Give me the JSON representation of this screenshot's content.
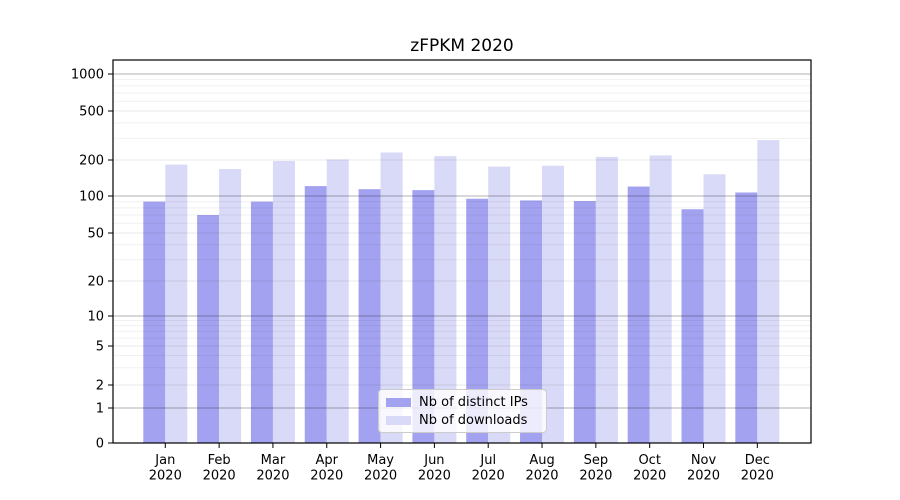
{
  "title": "zFPKM 2020",
  "chart_data": {
    "type": "bar",
    "title": "zFPKM 2020",
    "scale": "symlog",
    "grid": "on",
    "legend_position": "lower center",
    "categories": [
      "Jan 2020",
      "Feb 2020",
      "Mar 2020",
      "Apr 2020",
      "May 2020",
      "Jun 2020",
      "Jul 2020",
      "Aug 2020",
      "Sep 2020",
      "Oct 2020",
      "Nov 2020",
      "Dec 2020"
    ],
    "series": [
      {
        "name": "Nb of distinct IPs",
        "color": "#a2a2f0",
        "values": [
          90,
          70,
          90,
          121,
          114,
          112,
          95,
          92,
          91,
          120,
          78,
          107
        ]
      },
      {
        "name": "Nb of downloads",
        "color": "#d9d9f8",
        "values": [
          183,
          168,
          196,
          202,
          230,
          215,
          176,
          179,
          212,
          218,
          152,
          290
        ]
      }
    ],
    "yticks": [
      0,
      1,
      2,
      5,
      10,
      20,
      50,
      100,
      200,
      500,
      1000
    ],
    "ylim": [
      0,
      1200
    ],
    "xlabel": "",
    "ylabel": ""
  },
  "colors": {
    "background": "#ffffff",
    "ips_bar": "#a2a2f0",
    "downloads_bar": "#d9d9f8",
    "grid_major": "#b5b5b5",
    "grid_minor": "#efefef",
    "axis": "#000000"
  }
}
